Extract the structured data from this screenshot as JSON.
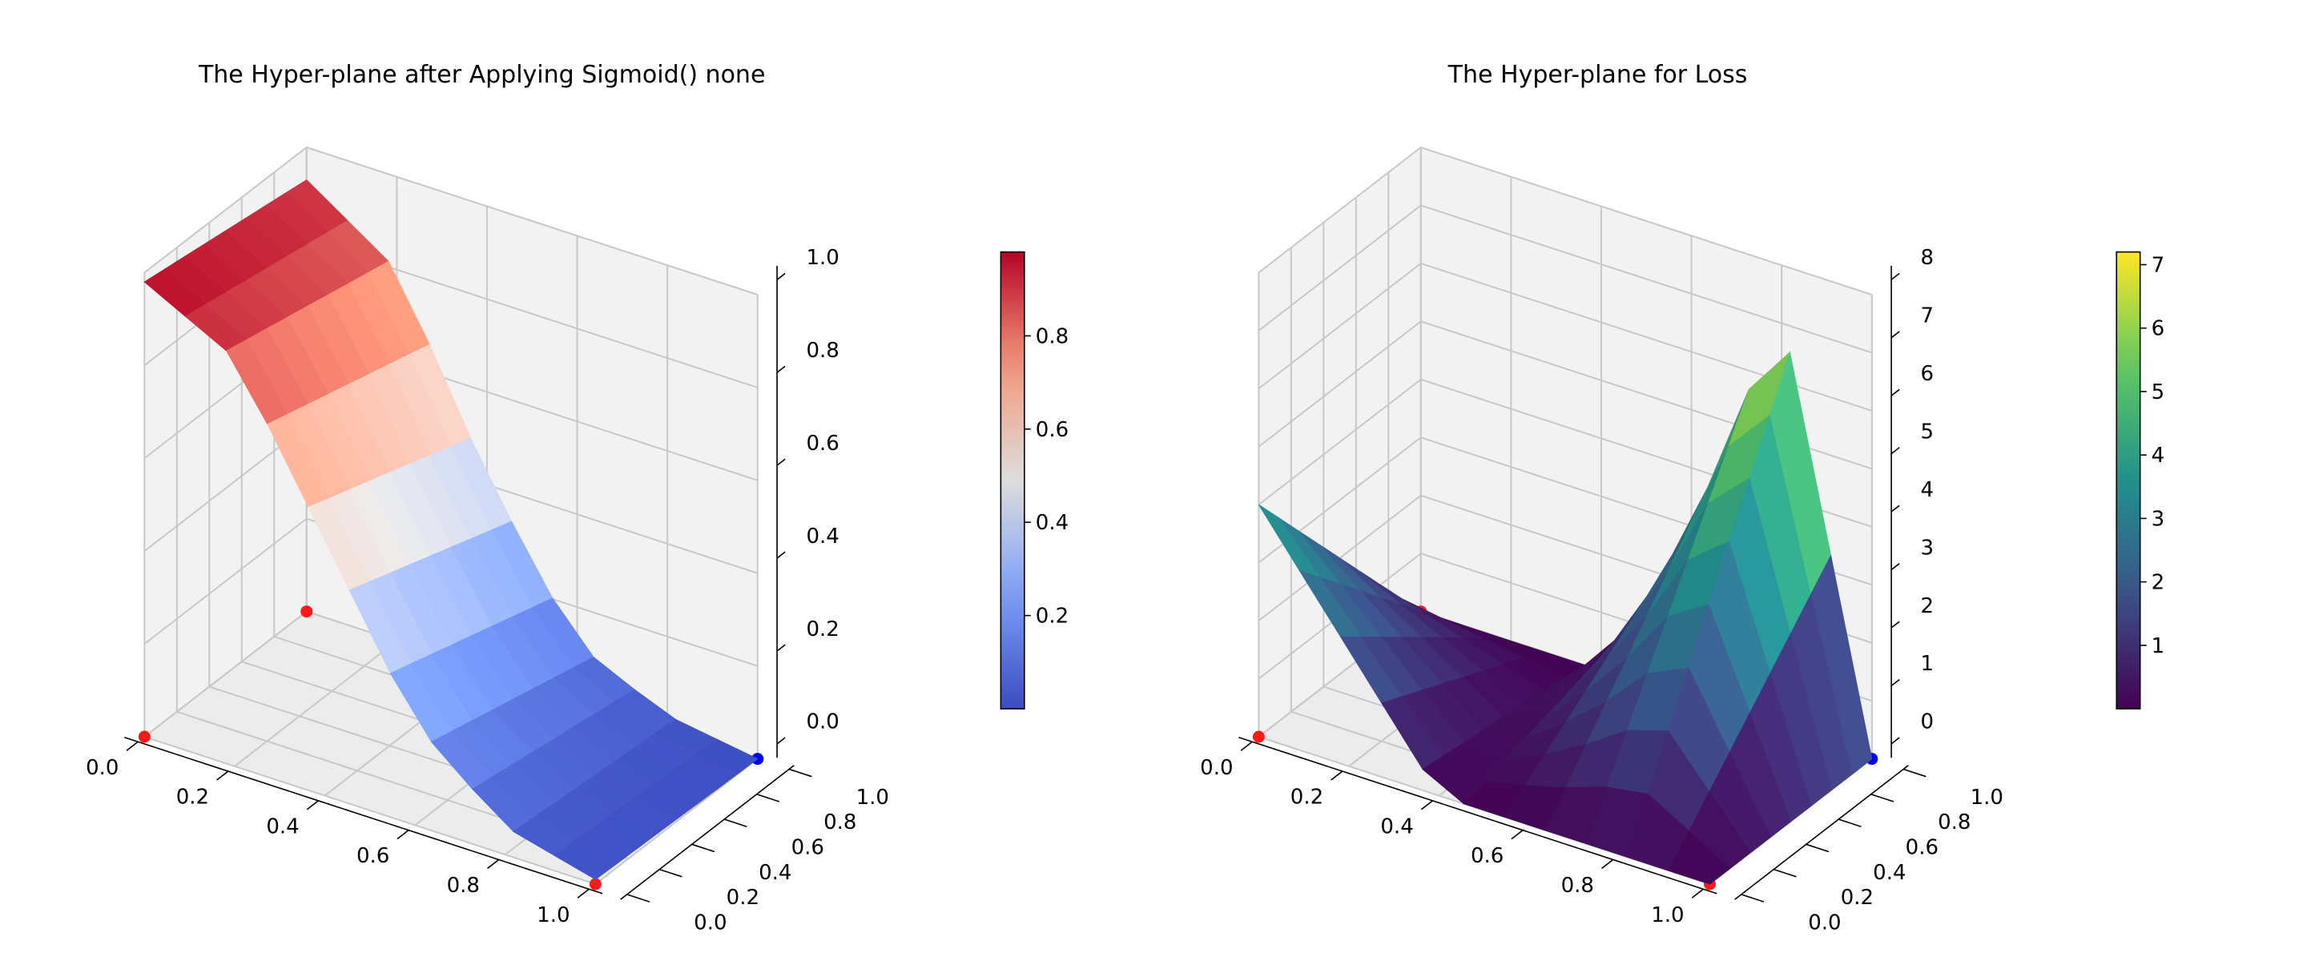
{
  "chart_data": [
    {
      "type": "surface3d",
      "title": "The Hyper-plane after Applying Sigmoid()  none",
      "xlabel": "",
      "ylabel": "",
      "zlabel": "",
      "xlim": [
        0,
        1
      ],
      "ylim": [
        0,
        1
      ],
      "zlim": [
        0,
        1
      ],
      "x_ticks": [
        "0.0",
        "0.2",
        "0.4",
        "0.6",
        "0.8",
        "1.0"
      ],
      "y_ticks": [
        "0.0",
        "0.2",
        "0.4",
        "0.6",
        "0.8",
        "1.0"
      ],
      "z_ticks": [
        "0.0",
        "0.2",
        "0.4",
        "0.6",
        "0.8",
        "1.0"
      ],
      "colormap": "coolwarm",
      "colorbar": {
        "min": 0.0,
        "max": 0.98,
        "ticks": [
          "0.2",
          "0.4",
          "0.6",
          "0.8"
        ]
      },
      "grid": true,
      "surface_profile": {
        "x": [
          0.0,
          0.2,
          0.4,
          0.6,
          0.8,
          1.0
        ],
        "z_at_y0": [
          0.98,
          0.88,
          0.55,
          0.22,
          0.06,
          0.01
        ],
        "z_at_y1": [
          0.93,
          0.8,
          0.42,
          0.12,
          0.03,
          0.0
        ]
      },
      "points": [
        {
          "x": 0,
          "y": 0,
          "z": 0,
          "color": "red"
        },
        {
          "x": 1,
          "y": 0,
          "z": 0,
          "color": "red"
        },
        {
          "x": 0,
          "y": 1,
          "z": 0,
          "color": "red"
        },
        {
          "x": 1,
          "y": 1,
          "z": 0,
          "color": "blue"
        }
      ]
    },
    {
      "type": "surface3d",
      "title": "The Hyper-plane for Loss",
      "xlabel": "",
      "ylabel": "",
      "zlabel": "",
      "xlim": [
        0,
        1
      ],
      "ylim": [
        0,
        1
      ],
      "zlim": [
        0,
        8
      ],
      "x_ticks": [
        "0.0",
        "0.2",
        "0.4",
        "0.6",
        "0.8",
        "1.0"
      ],
      "y_ticks": [
        "0.0",
        "0.2",
        "0.4",
        "0.6",
        "0.8",
        "1.0"
      ],
      "z_ticks": [
        "0",
        "1",
        "2",
        "3",
        "4",
        "5",
        "6",
        "7",
        "8"
      ],
      "colormap": "viridis",
      "colorbar": {
        "min": 0.0,
        "max": 7.2,
        "ticks": [
          "1",
          "2",
          "3",
          "4",
          "5",
          "6",
          "7"
        ]
      },
      "grid": true,
      "surface_profile": {
        "x": [
          0.0,
          0.2,
          0.4,
          0.6,
          0.8,
          1.0
        ],
        "z_at_y0": [
          4.0,
          2.0,
          0.0,
          0.0,
          0.0,
          0.0
        ],
        "z_at_y1": [
          0.0,
          0.0,
          0.0,
          3.0,
          7.2,
          0.0
        ]
      },
      "points": [
        {
          "x": 0,
          "y": 0,
          "z": 0,
          "color": "red"
        },
        {
          "x": 1,
          "y": 0,
          "z": 0,
          "color": "red"
        },
        {
          "x": 0,
          "y": 1,
          "z": 0,
          "color": "red"
        },
        {
          "x": 1,
          "y": 1,
          "z": 0,
          "color": "blue"
        }
      ]
    }
  ]
}
